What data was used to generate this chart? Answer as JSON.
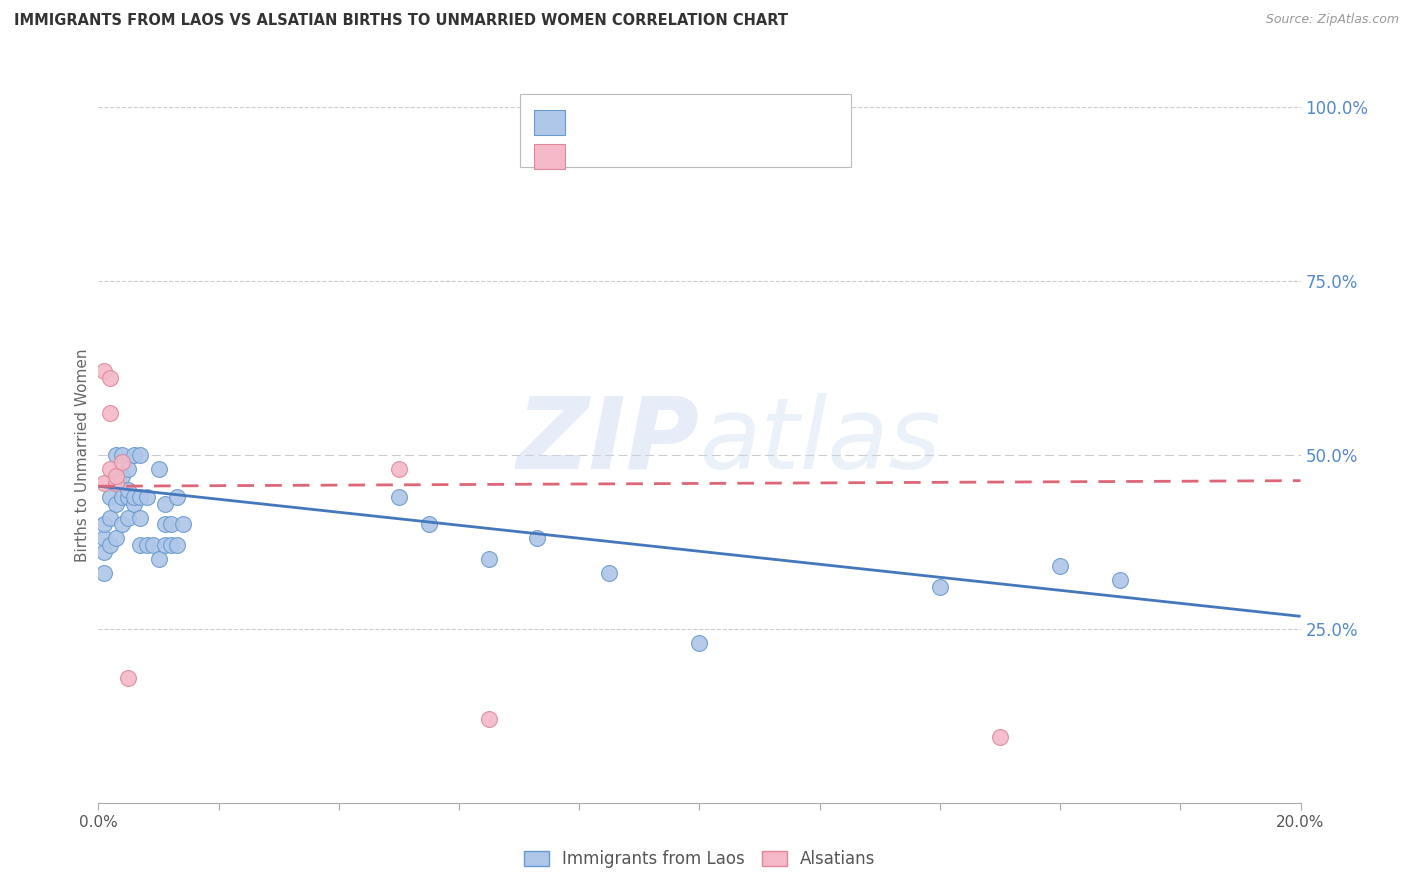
{
  "title": "IMMIGRANTS FROM LAOS VS ALSATIAN BIRTHS TO UNMARRIED WOMEN CORRELATION CHART",
  "source": "Source: ZipAtlas.com",
  "ylabel_left": "Births to Unmarried Women",
  "xlim": [
    0.0,
    0.2
  ],
  "ylim": [
    0.0,
    1.0
  ],
  "ytick_right_vals": [
    0.25,
    0.5,
    0.75,
    1.0
  ],
  "ytick_right_labels": [
    "25.0%",
    "50.0%",
    "75.0%",
    "100.0%"
  ],
  "legend_label_blue": "Immigrants from Laos",
  "legend_label_pink": "Alsatians",
  "watermark": "ZIPatlas",
  "blue_fill": "#aec6e8",
  "pink_fill": "#f4b8c8",
  "blue_edge": "#6699cc",
  "pink_edge": "#dd8899",
  "blue_line_color": "#4477bb",
  "pink_line_color": "#dd6677",
  "legend_text_color": "#4477bb",
  "grid_color": "#cccccc",
  "title_color": "#333333",
  "right_label_color": "#5588cc",
  "blue_scatter_x": [
    0.001,
    0.001,
    0.001,
    0.001,
    0.002,
    0.002,
    0.002,
    0.003,
    0.003,
    0.003,
    0.003,
    0.004,
    0.004,
    0.004,
    0.004,
    0.005,
    0.005,
    0.005,
    0.005,
    0.006,
    0.006,
    0.006,
    0.007,
    0.007,
    0.007,
    0.007,
    0.008,
    0.008,
    0.009,
    0.01,
    0.01,
    0.011,
    0.011,
    0.011,
    0.012,
    0.012,
    0.013,
    0.013,
    0.014,
    0.05,
    0.055,
    0.065,
    0.073,
    0.085,
    0.1,
    0.14,
    0.16,
    0.17
  ],
  "blue_scatter_y": [
    0.33,
    0.36,
    0.38,
    0.4,
    0.37,
    0.41,
    0.44,
    0.38,
    0.43,
    0.46,
    0.5,
    0.4,
    0.44,
    0.47,
    0.5,
    0.41,
    0.44,
    0.45,
    0.48,
    0.43,
    0.44,
    0.5,
    0.37,
    0.41,
    0.44,
    0.5,
    0.37,
    0.44,
    0.37,
    0.35,
    0.48,
    0.37,
    0.4,
    0.43,
    0.37,
    0.4,
    0.37,
    0.44,
    0.4,
    0.44,
    0.4,
    0.35,
    0.38,
    0.33,
    0.23,
    0.31,
    0.34,
    0.32
  ],
  "pink_scatter_x": [
    0.001,
    0.001,
    0.002,
    0.002,
    0.002,
    0.003,
    0.003,
    0.004,
    0.005,
    0.05,
    0.065,
    0.15
  ],
  "pink_scatter_y": [
    0.46,
    0.62,
    0.56,
    0.61,
    0.48,
    0.46,
    0.47,
    0.49,
    0.18,
    0.48,
    0.12,
    0.095
  ],
  "blue_trend_x": [
    0.0,
    0.2
  ],
  "blue_trend_y": [
    0.455,
    0.268
  ],
  "pink_trend_x": [
    0.0,
    0.2
  ],
  "pink_trend_y": [
    0.455,
    0.463
  ]
}
